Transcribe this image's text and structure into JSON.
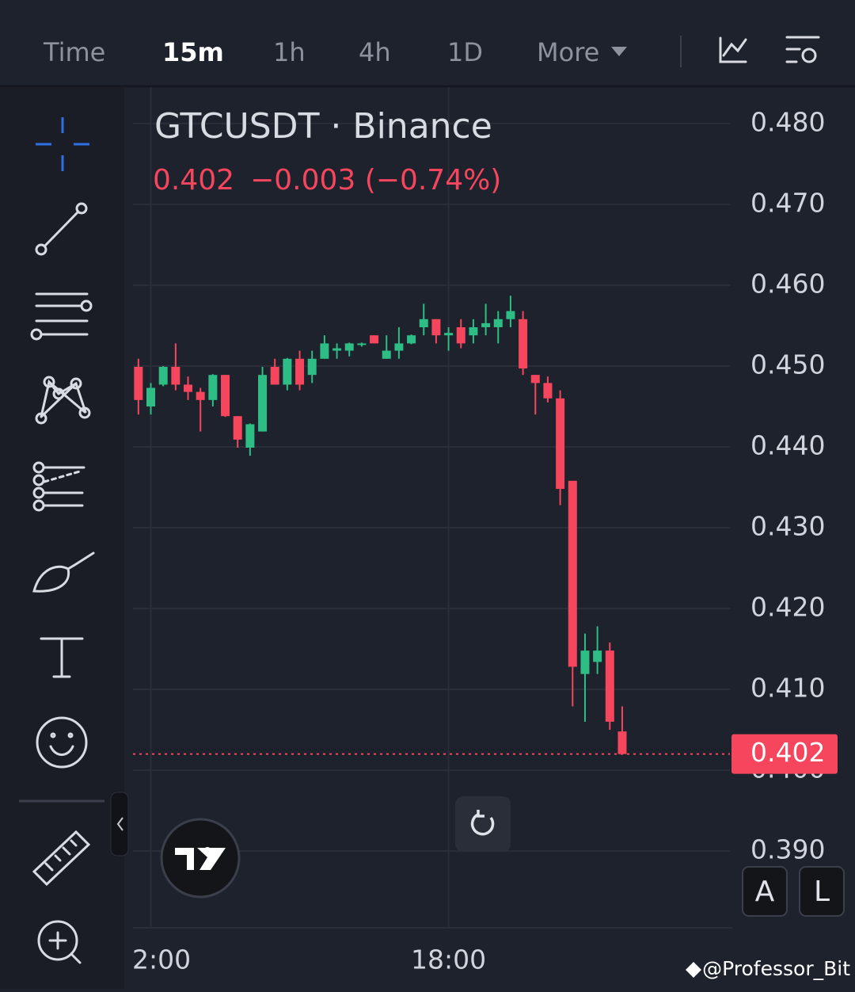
{
  "toolbar": {
    "tabs": [
      "Time",
      "15m",
      "1h",
      "4h",
      "1D",
      "More"
    ],
    "active": "15m"
  },
  "chart_data": {
    "type": "candlestick",
    "title": "GTCUSDT · Binance",
    "quote": {
      "price": "0.402",
      "change": "−0.003 (−0.74%)"
    },
    "price_label": "0.402",
    "categories": [
      null,
      "2:00",
      null,
      null,
      null,
      null,
      null,
      null,
      null,
      null,
      null,
      null,
      null,
      null,
      null,
      null,
      null,
      null,
      null,
      null,
      null,
      null,
      null,
      null,
      null,
      "18:00",
      null,
      null,
      null,
      null,
      null,
      null,
      null,
      null,
      null,
      null,
      null,
      null,
      null,
      null
    ],
    "open": [
      0.4499,
      0.445,
      0.4477,
      0.4499,
      0.4477,
      0.4468,
      0.4458,
      0.4489,
      0.4438,
      0.4399,
      0.4419,
      0.4499,
      0.4477,
      0.4509,
      0.4489,
      0.4509,
      0.4519,
      0.4519,
      0.4526,
      0.4538,
      0.4509,
      0.4519,
      0.4528,
      0.4548,
      0.4558,
      0.4538,
      0.4548,
      0.4538,
      0.4548,
      0.4548,
      0.4558,
      0.4558,
      0.4489,
      0.4479,
      0.446,
      0.4358,
      0.4119,
      0.4134,
      0.4148,
      0.4048
    ],
    "high": [
      0.4509,
      0.4479,
      0.45,
      0.4528,
      0.4487,
      0.4473,
      0.449,
      0.4489,
      0.4438,
      0.4429,
      0.4499,
      0.4509,
      0.451,
      0.4519,
      0.4519,
      0.4538,
      0.4528,
      0.4529,
      0.4529,
      0.4538,
      0.4538,
      0.4548,
      0.4539,
      0.4577,
      0.4558,
      0.4548,
      0.4558,
      0.4558,
      0.4577,
      0.4568,
      0.4587,
      0.4568,
      0.4489,
      0.4487,
      0.447,
      0.4358,
      0.4169,
      0.4178,
      0.4158,
      0.4079
    ],
    "low": [
      0.444,
      0.444,
      0.4475,
      0.447,
      0.4458,
      0.4419,
      0.445,
      0.4437,
      0.4399,
      0.4389,
      0.4419,
      0.4477,
      0.447,
      0.447,
      0.4479,
      0.4509,
      0.4509,
      0.4512,
      0.4524,
      0.4528,
      0.4509,
      0.4509,
      0.4527,
      0.4538,
      0.4528,
      0.4519,
      0.4522,
      0.4528,
      0.4538,
      0.4528,
      0.4548,
      0.4489,
      0.444,
      0.4455,
      0.4328,
      0.4079,
      0.406,
      0.4119,
      0.405,
      0.402
    ],
    "close": [
      0.4458,
      0.4473,
      0.4499,
      0.4477,
      0.4468,
      0.4458,
      0.4489,
      0.4438,
      0.4409,
      0.4428,
      0.4489,
      0.4477,
      0.4509,
      0.4477,
      0.4509,
      0.4528,
      0.4522,
      0.4528,
      0.4528,
      0.4528,
      0.4519,
      0.4528,
      0.4538,
      0.4558,
      0.4538,
      0.4541,
      0.4528,
      0.4548,
      0.4553,
      0.4558,
      0.4568,
      0.4497,
      0.4479,
      0.446,
      0.4348,
      0.4128,
      0.4148,
      0.4148,
      0.406,
      0.402
    ],
    "up_color": "#2ebd85",
    "down_color": "#f6465d",
    "ylim": [
      0.3806,
      0.4845
    ],
    "yticks": [
      {
        "value": 0.39,
        "label": "0.390"
      },
      {
        "value": 0.4,
        "label": "0.400"
      },
      {
        "value": 0.41,
        "label": "0.410"
      },
      {
        "value": 0.42,
        "label": "0.420"
      },
      {
        "value": 0.43,
        "label": "0.430"
      },
      {
        "value": 0.44,
        "label": "0.440"
      },
      {
        "value": 0.45,
        "label": "0.450"
      },
      {
        "value": 0.46,
        "label": "0.460"
      },
      {
        "value": 0.47,
        "label": "0.470"
      },
      {
        "value": 0.48,
        "label": "0.480"
      }
    ],
    "grid": true
  },
  "buttons": [
    "A",
    "L"
  ],
  "watermark": "@Professor_Bit"
}
